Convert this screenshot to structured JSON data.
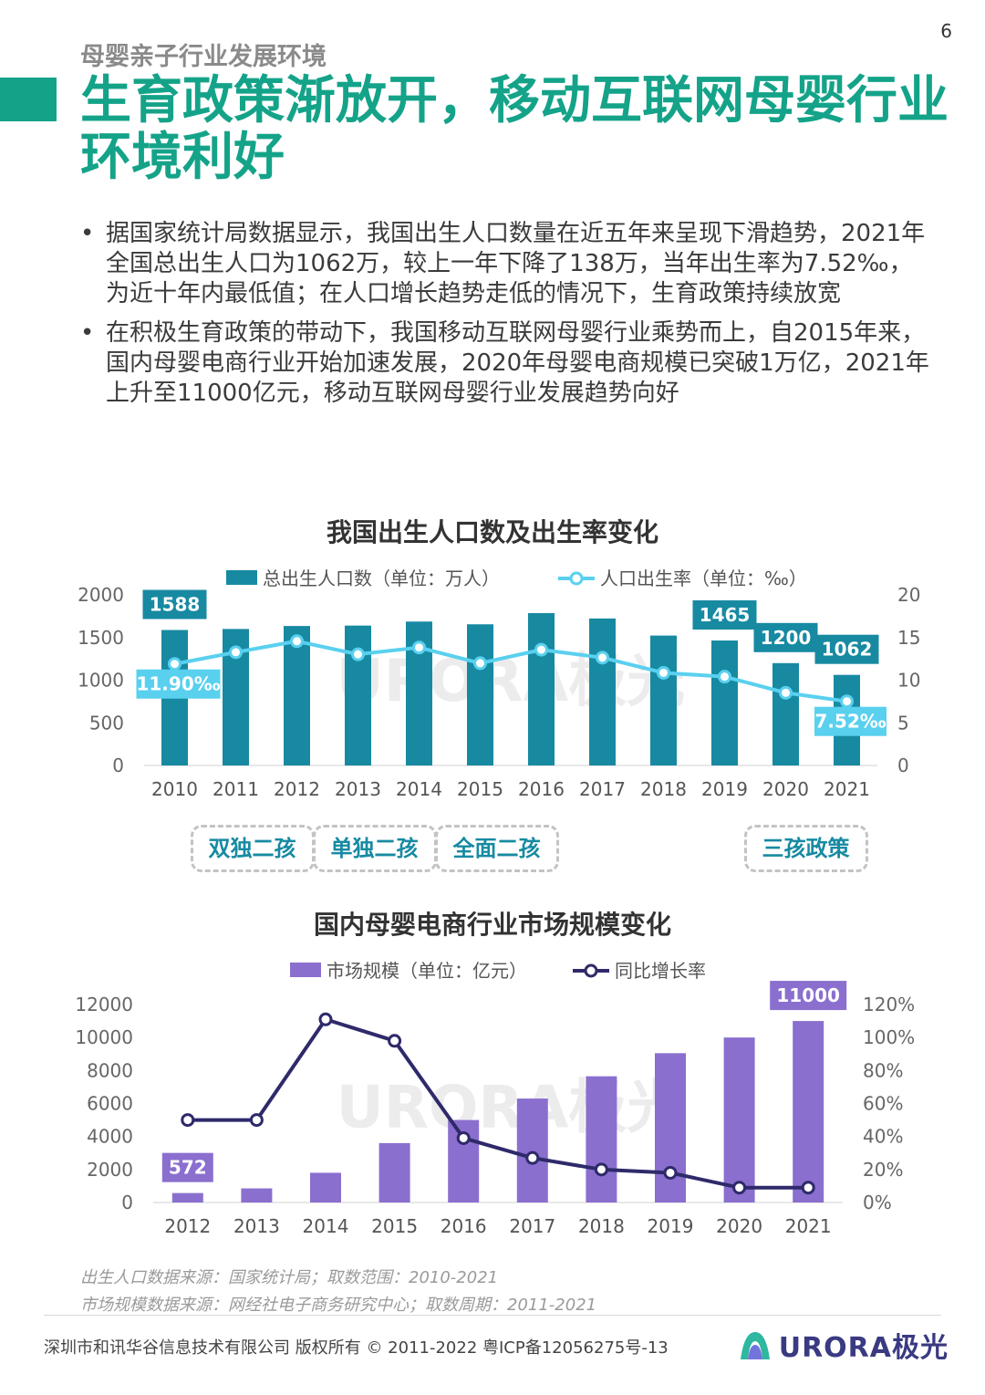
{
  "page": {
    "number": "6",
    "section_label": "母婴亲子行业发展环境",
    "headline": "生育政策渐放开，移动互联网母婴行业环境利好",
    "bullets": [
      "据国家统计局数据显示，我国出生人口数量在近五年来呈现下滑趋势，2021年全国总出生人口为1062万，较上一年下降了138万，当年出生率为7.52‰，为近十年内最低值；在人口增长趋势走低的情况下，生育政策持续放宽",
      "在积极生育政策的带动下，我国移动互联网母婴行业乘势而上，自2015年来，国内母婴电商行业开始加速发展，2020年母婴电商规模已突破1万亿，2021年上升至11000亿元，移动互联网母婴行业发展趋势向好"
    ],
    "bullet_mark": "•",
    "source_1": "出生人口数据来源：国家统计局；取数范围：2010-2021",
    "source_2": "市场规模数据来源：网经社电子商务研究中心；取数周期：2011-2021",
    "copyright": "深圳市和讯华谷信息技术有限公司 版权所有 © 2011-2022 粤ICP备12056275号-13",
    "logo_text": "URORA极光",
    "watermark_text": "URORA极光"
  },
  "colors": {
    "accent": "#14a389",
    "birth_bar": "#178aa2",
    "birth_rate_line": "#5ad0ef",
    "market_bar": "#8a6fcf",
    "growth_line": "#2e2a6a"
  },
  "policies": [
    {
      "label": "双独二孩",
      "year": "2011"
    },
    {
      "label": "单独二孩",
      "year": "2013"
    },
    {
      "label": "全面二孩",
      "year": "2015"
    },
    {
      "label": "三孩政策",
      "year": "2021"
    }
  ],
  "chart_data": [
    {
      "type": "bar",
      "title": "我国出生人口数及出生率变化",
      "categories": [
        "2010",
        "2011",
        "2012",
        "2013",
        "2014",
        "2015",
        "2016",
        "2017",
        "2018",
        "2019",
        "2020",
        "2021"
      ],
      "series": [
        {
          "name": "总出生人口数（单位：万人）",
          "type": "bar",
          "axis": "left",
          "values": [
            1588,
            1600,
            1635,
            1640,
            1687,
            1655,
            1786,
            1723,
            1523,
            1465,
            1200,
            1062
          ]
        },
        {
          "name": "人口出生率（单位：‰）",
          "type": "line",
          "axis": "right",
          "values": [
            11.9,
            13.27,
            14.57,
            13.03,
            13.83,
            11.99,
            13.57,
            12.64,
            10.86,
            10.41,
            8.52,
            7.52
          ]
        }
      ],
      "bar_labels": [
        {
          "index": 0,
          "text": "1588"
        },
        {
          "index": 9,
          "text": "1465"
        },
        {
          "index": 10,
          "text": "1200"
        },
        {
          "index": 11,
          "text": "1062"
        }
      ],
      "line_labels": [
        {
          "index": 0,
          "text": "11.90‰"
        },
        {
          "index": 11,
          "text": "7.52‰"
        }
      ],
      "y_left": {
        "ticks": [
          "0",
          "500",
          "1000",
          "1500",
          "2000"
        ],
        "min": 0,
        "max": 2000
      },
      "y_right": {
        "ticks": [
          "0",
          "5",
          "10",
          "15",
          "20"
        ],
        "min": 0,
        "max": 20
      },
      "legend_position": "top"
    },
    {
      "type": "bar",
      "title": "国内母婴电商行业市场规模变化",
      "categories": [
        "2012",
        "2013",
        "2014",
        "2015",
        "2016",
        "2017",
        "2018",
        "2019",
        "2020",
        "2021"
      ],
      "series": [
        {
          "name": "市场规模（单位：亿元）",
          "type": "bar",
          "axis": "left",
          "values": [
            572,
            855,
            1800,
            3600,
            5000,
            6300,
            7650,
            9050,
            10000,
            11000
          ]
        },
        {
          "name": "同比增长率",
          "type": "line",
          "axis": "right",
          "values": [
            50,
            50,
            111,
            98,
            39,
            27,
            20,
            18,
            9,
            9
          ]
        }
      ],
      "bar_labels": [
        {
          "index": 0,
          "text": "572"
        },
        {
          "index": 9,
          "text": "11000"
        }
      ],
      "y_left": {
        "ticks": [
          "0",
          "2000",
          "4000",
          "6000",
          "8000",
          "10000",
          "12000"
        ],
        "min": 0,
        "max": 12000
      },
      "y_right": {
        "ticks": [
          "0%",
          "20%",
          "40%",
          "60%",
          "80%",
          "100%",
          "120%"
        ],
        "min": 0,
        "max": 120
      },
      "legend_position": "top"
    }
  ]
}
